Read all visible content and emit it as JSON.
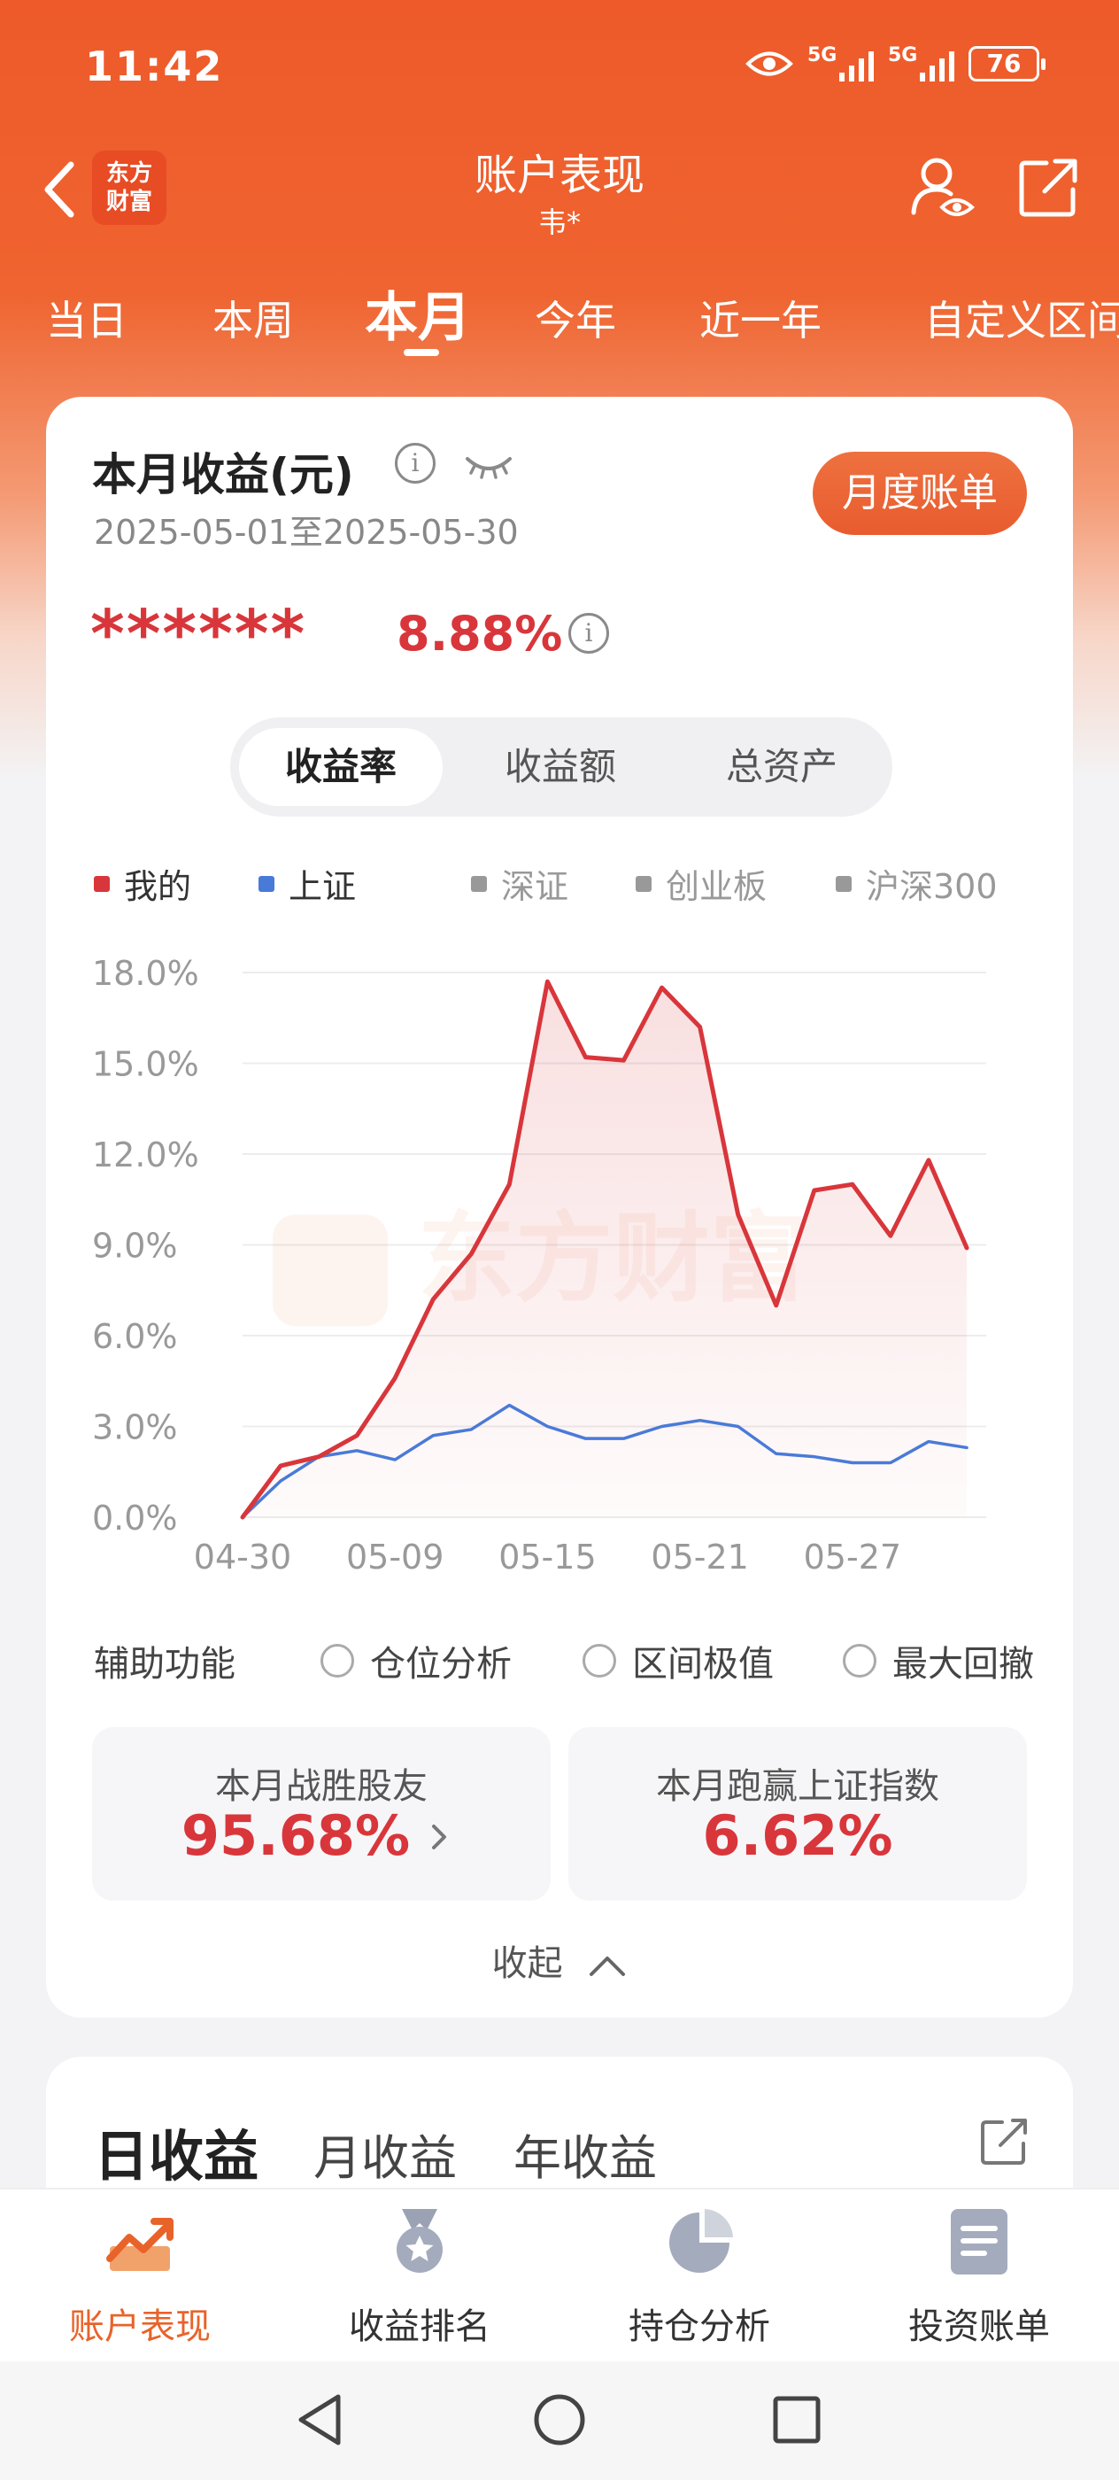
{
  "status_bar": {
    "time": "11:42",
    "battery": "76",
    "network1": "5G",
    "network2": "5G"
  },
  "header": {
    "logo_text_1": "东方",
    "logo_text_2": "财富",
    "title": "账户表现",
    "subtitle": "韦*"
  },
  "period_tabs": [
    "当日",
    "本周",
    "本月",
    "今年",
    "近一年",
    "自定义区间"
  ],
  "summary": {
    "title": "本月收益(元)",
    "date_range": "2025-05-01至2025-05-30",
    "bill_button": "月度账单",
    "hidden_amount": "******",
    "return_pct": "8.88%"
  },
  "segments": [
    "收益率",
    "收益额",
    "总资产"
  ],
  "legend": [
    {
      "label": "我的",
      "color": "#d8363b"
    },
    {
      "label": "上证",
      "color": "#4a7ad8"
    },
    {
      "label": "深证",
      "color": "#999999"
    },
    {
      "label": "创业板",
      "color": "#999999"
    },
    {
      "label": "沪深300",
      "color": "#999999"
    }
  ],
  "chart_data": {
    "type": "line",
    "x": [
      "04-30",
      "05-06",
      "05-07",
      "05-08",
      "05-09",
      "05-12",
      "05-13",
      "05-14",
      "05-15",
      "05-16",
      "05-19",
      "05-20",
      "05-21",
      "05-22",
      "05-23",
      "05-26",
      "05-27",
      "05-28",
      "05-29",
      "05-30"
    ],
    "x_tick_labels": [
      "04-30",
      "05-09",
      "05-15",
      "05-21",
      "05-27"
    ],
    "y_tick_labels": [
      "0.0%",
      "3.0%",
      "6.0%",
      "9.0%",
      "12.0%",
      "15.0%",
      "18.0%"
    ],
    "ylim": [
      0,
      18
    ],
    "grid": true,
    "series": [
      {
        "name": "我的",
        "color": "#d8363b",
        "values": [
          0.0,
          1.7,
          2.0,
          2.7,
          4.6,
          7.2,
          8.7,
          11.0,
          17.7,
          15.2,
          15.1,
          17.5,
          16.2,
          10.0,
          7.0,
          10.8,
          11.0,
          9.3,
          11.8,
          8.9
        ]
      },
      {
        "name": "上证",
        "color": "#4a7ad8",
        "values": [
          0.0,
          1.2,
          2.0,
          2.2,
          1.9,
          2.7,
          2.9,
          3.7,
          3.0,
          2.6,
          2.6,
          3.0,
          3.2,
          3.0,
          2.1,
          2.0,
          1.8,
          1.8,
          2.5,
          2.3
        ]
      }
    ],
    "watermark": "东方财富"
  },
  "aux": {
    "label": "辅助功能",
    "options": [
      "仓位分析",
      "区间极值",
      "最大回撤"
    ]
  },
  "stats": [
    {
      "title": "本月战胜股友",
      "value": "95.68%"
    },
    {
      "title": "本月跑赢上证指数",
      "value": "6.62%"
    }
  ],
  "collapse_label": "收起",
  "bottom_tabs": [
    "日收益",
    "月收益",
    "年收益"
  ],
  "bottom_nav": [
    {
      "label": "账户表现",
      "icon": "chart-up-icon"
    },
    {
      "label": "收益排名",
      "icon": "medal-icon"
    },
    {
      "label": "持仓分析",
      "icon": "pie-icon"
    },
    {
      "label": "投资账单",
      "icon": "document-icon"
    }
  ]
}
